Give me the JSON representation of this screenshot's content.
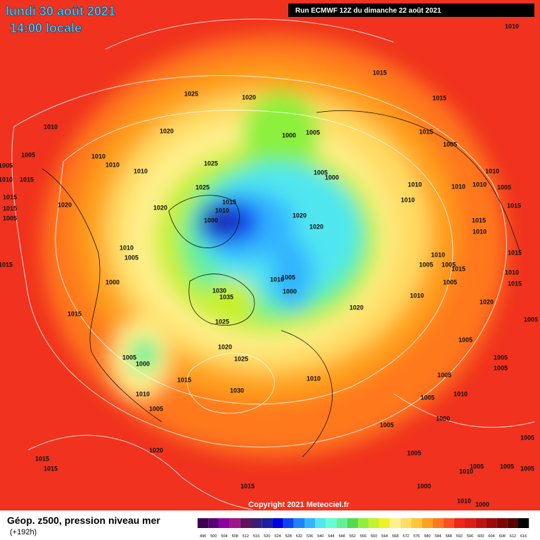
{
  "header": {
    "date": "lundi 30 août 2021",
    "time": "14:00 locale",
    "run": "Run ECMWF 12Z du dimanche 22 août 2021"
  },
  "footer": {
    "title": "Géop. z500, pression niveau mer",
    "lead": "(+192h)",
    "copyright": "Copyright 2021 Meteociel.fr"
  },
  "scale": {
    "ticks": [
      496,
      500,
      504,
      508,
      512,
      516,
      520,
      524,
      528,
      532,
      536,
      540,
      544,
      548,
      552,
      556,
      560,
      564,
      568,
      572,
      576,
      580,
      584,
      588,
      592,
      596,
      600,
      604,
      608,
      612,
      616
    ],
    "colors": [
      "#3c0050",
      "#5a0078",
      "#8c00a0",
      "#a0148c",
      "#64145a",
      "#3c1e78",
      "#1e1ea0",
      "#0000dc",
      "#0a46f0",
      "#1e82ff",
      "#32b4ff",
      "#50e6f0",
      "#64ffd2",
      "#64f096",
      "#50dc50",
      "#8cf03c",
      "#c8f028",
      "#f0f028",
      "#fff08c",
      "#ffdc64",
      "#ffc832",
      "#ffa01e",
      "#ff781e",
      "#ff501e",
      "#f02814",
      "#dc1e14",
      "#be1414",
      "#a00a0a",
      "#7d0505",
      "#5a0000",
      "#000000"
    ]
  },
  "isobar_labels": [
    1010,
    1015,
    1015,
    1025,
    1020,
    1010,
    1020,
    1015,
    1005,
    1000,
    1005,
    1005,
    1010,
    1010,
    1005,
    1015,
    1010,
    1025,
    1005,
    1000,
    1010,
    1010,
    1010,
    1010,
    1010,
    1005,
    1025,
    1015,
    1020,
    1020,
    1015,
    1010,
    1020,
    1010,
    1015,
    1015,
    1000,
    1005,
    1020,
    1015,
    1010,
    1010,
    1005,
    1010,
    1015,
    1015,
    1005,
    1005,
    1015,
    1010,
    1000,
    1005,
    1010,
    1005,
    1015,
    1030,
    1035,
    1000,
    1010,
    1020,
    1020,
    1015,
    1025,
    1005,
    1020,
    1005,
    1025,
    1005,
    1000,
    1005,
    1005,
    1010,
    1015,
    1030,
    1005,
    1010,
    1010,
    1005,
    1005,
    1000,
    1005,
    1005,
    1020,
    1005,
    1015,
    1015,
    1005,
    1010,
    1005,
    1005,
    1000,
    1015,
    1010,
    1000
  ]
}
